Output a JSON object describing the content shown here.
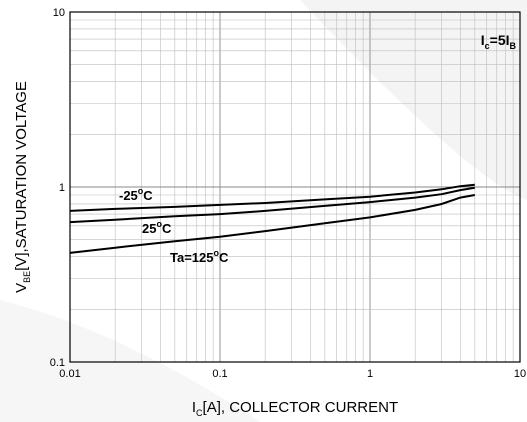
{
  "chart_data": {
    "type": "line",
    "title": "",
    "xlabel": {
      "main": "I",
      "sub": "C",
      "rest": "[A], COLLECTOR CURRENT"
    },
    "ylabel": {
      "main": "V",
      "sub": "BE",
      "rest": "[V],SATURATION VOLTAGE"
    },
    "x_scale": "log",
    "y_scale": "log",
    "xlim": [
      0.01,
      10
    ],
    "ylim": [
      0.1,
      10
    ],
    "x_ticks": [
      {
        "value": 0.01,
        "label": "0.01"
      },
      {
        "value": 0.1,
        "label": "0.1"
      },
      {
        "value": 1,
        "label": "1"
      },
      {
        "value": 10,
        "label": "10"
      }
    ],
    "y_ticks": [
      {
        "value": 0.1,
        "label": "0.1"
      },
      {
        "value": 1,
        "label": "1"
      },
      {
        "value": 10,
        "label": "10"
      }
    ],
    "grid": true,
    "condition": {
      "base": "I",
      "sub1": "c",
      "mid": "=5I",
      "sub2": "B"
    },
    "series": [
      {
        "name": "-25°C",
        "label": {
          "pre": "-25",
          "sup": "o",
          "post": "C"
        },
        "points": [
          [
            0.01,
            0.73
          ],
          [
            0.02,
            0.75
          ],
          [
            0.05,
            0.77
          ],
          [
            0.1,
            0.79
          ],
          [
            0.2,
            0.81
          ],
          [
            0.5,
            0.85
          ],
          [
            1,
            0.88
          ],
          [
            2,
            0.93
          ],
          [
            3,
            0.97
          ],
          [
            4,
            1.01
          ],
          [
            5,
            1.03
          ]
        ]
      },
      {
        "name": "25°C",
        "label": {
          "pre": "25",
          "sup": "o",
          "post": "C"
        },
        "points": [
          [
            0.01,
            0.63
          ],
          [
            0.02,
            0.65
          ],
          [
            0.05,
            0.68
          ],
          [
            0.1,
            0.7
          ],
          [
            0.2,
            0.73
          ],
          [
            0.5,
            0.78
          ],
          [
            1,
            0.82
          ],
          [
            2,
            0.87
          ],
          [
            3,
            0.91
          ],
          [
            4,
            0.96
          ],
          [
            5,
            0.99
          ]
        ]
      },
      {
        "name": "Ta=125°C",
        "label": {
          "pre": "Ta=125",
          "sup": "o",
          "post": "C"
        },
        "points": [
          [
            0.01,
            0.42
          ],
          [
            0.02,
            0.45
          ],
          [
            0.05,
            0.49
          ],
          [
            0.1,
            0.52
          ],
          [
            0.2,
            0.56
          ],
          [
            0.5,
            0.62
          ],
          [
            1,
            0.67
          ],
          [
            2,
            0.74
          ],
          [
            3,
            0.8
          ],
          [
            4,
            0.87
          ],
          [
            5,
            0.9
          ]
        ]
      }
    ]
  }
}
